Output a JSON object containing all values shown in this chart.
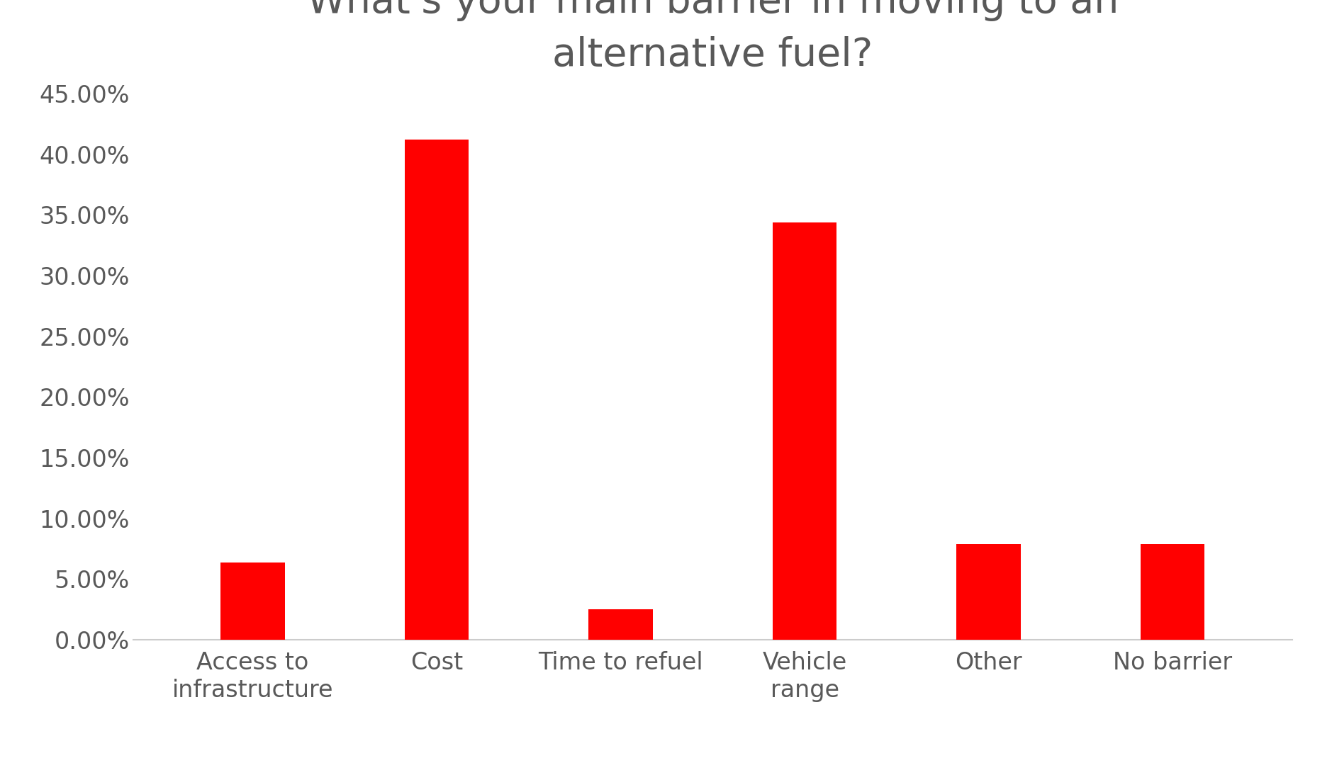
{
  "title": "What's your main barrier in moving to an\nalternative fuel?",
  "categories": [
    "Access to\ninfrastructure",
    "Cost",
    "Time to refuel",
    "Vehicle\nrange",
    "Other",
    "No barrier"
  ],
  "values": [
    0.0635,
    0.412,
    0.025,
    0.344,
    0.079,
    0.079
  ],
  "bar_color": "#ff0000",
  "ylim": [
    0,
    0.45
  ],
  "yticks": [
    0.0,
    0.05,
    0.1,
    0.15,
    0.2,
    0.25,
    0.3,
    0.35,
    0.4,
    0.45
  ],
  "background_color": "#ffffff",
  "title_fontsize": 40,
  "tick_fontsize": 24,
  "title_color": "#595959",
  "tick_color": "#595959",
  "bar_width": 0.35
}
